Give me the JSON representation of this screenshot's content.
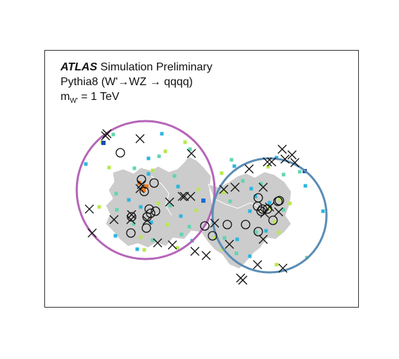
{
  "labels": {
    "atlas": "ATLAS",
    "status": "Simulation Preliminary",
    "process": "Pythia8 (W'→WZ → qqqq)",
    "mass_symbol": "m",
    "mass_subscript": "W'",
    "mass_value": "= 1 TeV"
  },
  "colors": {
    "left_jet_circle": "#b565b8",
    "right_jet_circle": "#5b8db5",
    "area_fill": "#cccccc",
    "markers": "#111111",
    "towers_low": "#b8e84a",
    "towers_mid": "#5ed6b0",
    "towers_high": "#2ab5e0",
    "towers_peak": "#f07a1a"
  }
}
